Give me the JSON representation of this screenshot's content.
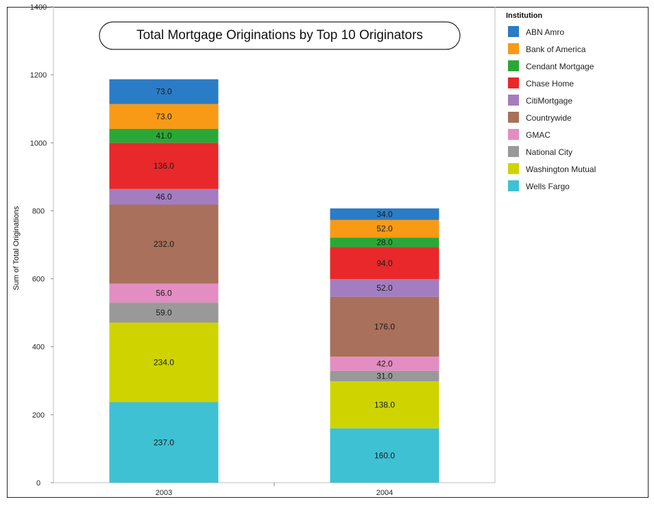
{
  "chart_data": {
    "type": "bar",
    "stacked": true,
    "title": "Total Mortgage Originations by Top 10 Originators",
    "xlabel": "",
    "ylabel": "Sum of Total Originations",
    "ylim": [
      0,
      1400
    ],
    "yticks": [
      0,
      200,
      400,
      600,
      800,
      1000,
      1200,
      1400
    ],
    "categories": [
      "2003",
      "2004"
    ],
    "legend_title": "Institution",
    "legend_position": "right",
    "series": [
      {
        "name": "Wells Fargo",
        "color": "#3ec1d3",
        "values": [
          237.0,
          160.0
        ],
        "labels": [
          "237.0",
          "160.0"
        ]
      },
      {
        "name": "Washington Mutual",
        "color": "#cfd400",
        "values": [
          234.0,
          138.0
        ],
        "labels": [
          "234.0",
          "138.0"
        ]
      },
      {
        "name": "National City",
        "color": "#999999",
        "values": [
          59.0,
          31.0
        ],
        "labels": [
          "59.0",
          "31.0"
        ]
      },
      {
        "name": "GMAC",
        "color": "#e38dc2",
        "values": [
          56.0,
          42.0
        ],
        "labels": [
          "56.0",
          "42.0"
        ]
      },
      {
        "name": "Countrywide",
        "color": "#a9705b",
        "values": [
          232.0,
          176.0
        ],
        "labels": [
          "232.0",
          "176.0"
        ]
      },
      {
        "name": "CitiMortgage",
        "color": "#a37dc0",
        "values": [
          46.0,
          52.0
        ],
        "labels": [
          "46.0",
          "52.0"
        ]
      },
      {
        "name": "Chase Home",
        "color": "#e8282a",
        "values": [
          136.0,
          94.0
        ],
        "labels": [
          "136.0",
          "94.0"
        ]
      },
      {
        "name": "Cendant Mortgage",
        "color": "#2aa837",
        "values": [
          41.0,
          28.0
        ],
        "labels": [
          "41.0",
          "28.0"
        ]
      },
      {
        "name": "Bank of America",
        "color": "#f89a15",
        "values": [
          73.0,
          52.0
        ],
        "labels": [
          "73.0",
          "52.0"
        ]
      },
      {
        "name": "ABN Amro",
        "color": "#2a7cc7",
        "values": [
          73.0,
          34.0
        ],
        "labels": [
          "73.0",
          "34.0"
        ]
      }
    ],
    "legend_order": [
      "ABN Amro",
      "Bank of America",
      "Cendant Mortgage",
      "Chase Home",
      "CitiMortgage",
      "Countrywide",
      "GMAC",
      "National City",
      "Washington Mutual",
      "Wells Fargo"
    ]
  }
}
